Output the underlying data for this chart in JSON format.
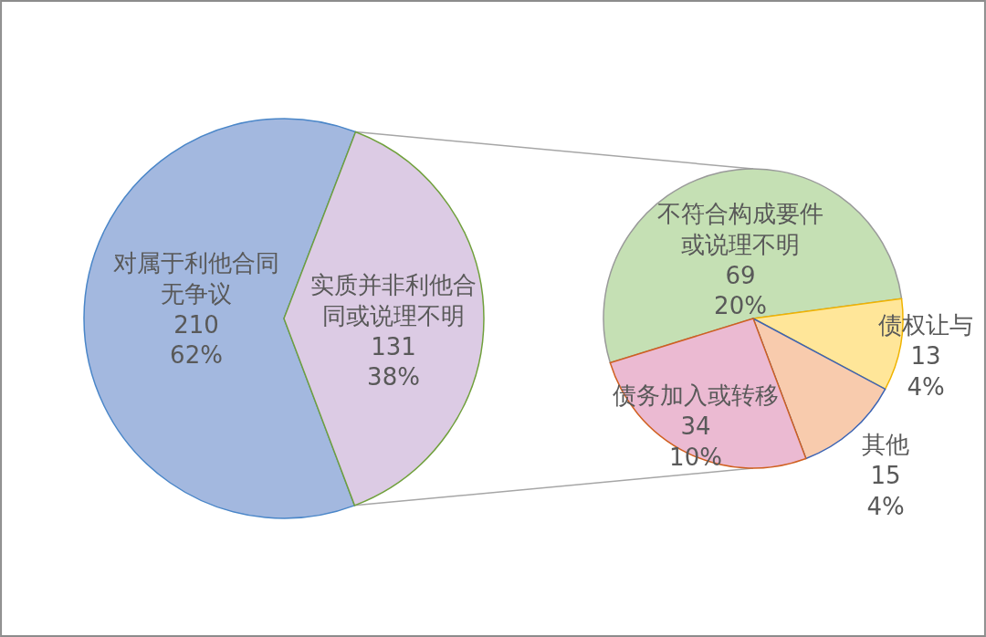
{
  "chart_data": [
    {
      "type": "pie",
      "categories": [
        "对属于利他合同无争议",
        "实质并非利他合同或说理不明"
      ],
      "values": [
        210,
        131
      ],
      "colors": [
        "#a3b8df",
        "#dccbe4"
      ],
      "value_labels": [
        "210\n62%",
        "131\n38%"
      ]
    },
    {
      "type": "pie",
      "categories": [
        "不符合构成要件或说理不明",
        "债权让与",
        "其他",
        "债务加入或转移"
      ],
      "values": [
        69,
        13,
        15,
        34
      ],
      "colors": [
        "#c5e0b4",
        "#ffe699",
        "#f8cbad",
        "#ebbad2"
      ],
      "value_labels": [
        "69\n20%",
        "13\n4%",
        "15\n4%",
        "34\n10%"
      ]
    }
  ]
}
